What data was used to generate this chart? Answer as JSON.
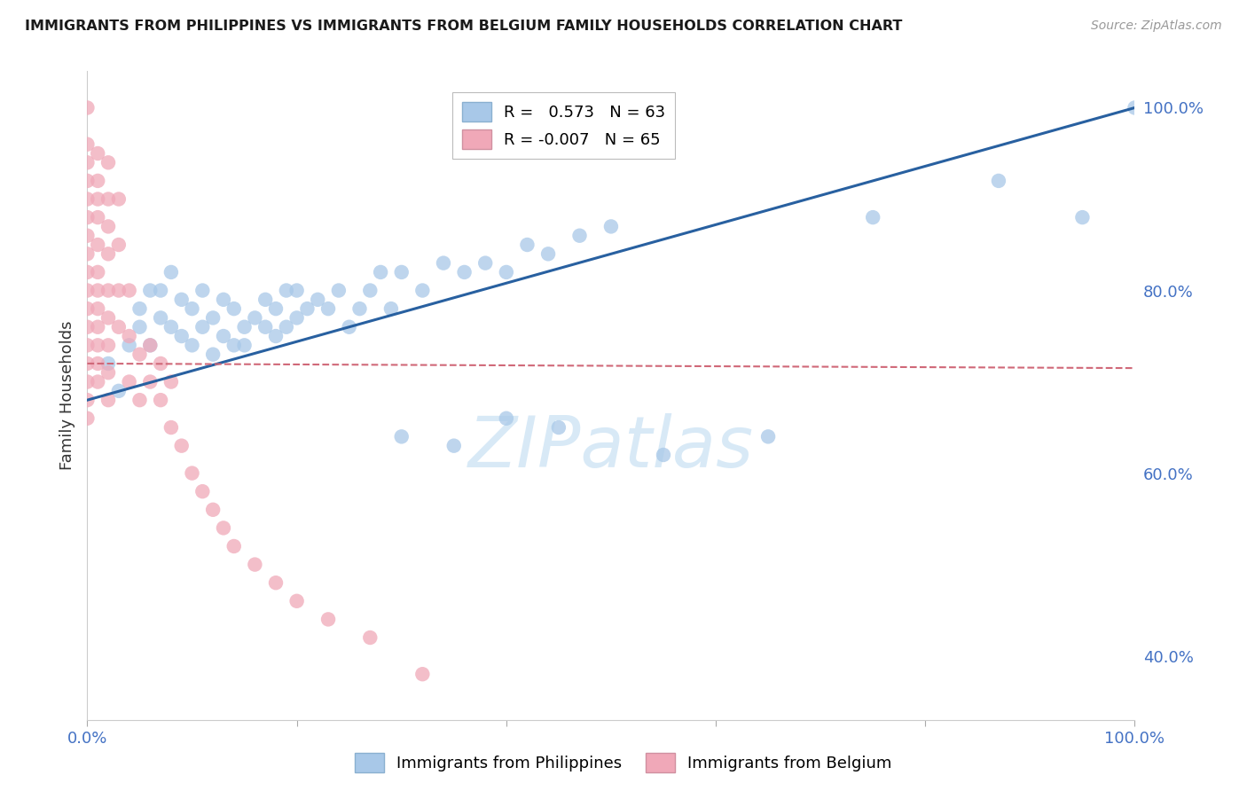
{
  "title": "IMMIGRANTS FROM PHILIPPINES VS IMMIGRANTS FROM BELGIUM FAMILY HOUSEHOLDS CORRELATION CHART",
  "source": "Source: ZipAtlas.com",
  "ylabel": "Family Households",
  "right_ytick_labels": [
    "100.0%",
    "80.0%",
    "60.0%",
    "40.0%"
  ],
  "right_ytick_values": [
    1.0,
    0.8,
    0.6,
    0.4
  ],
  "blue_color": "#a8c8e8",
  "pink_color": "#f0a8b8",
  "blue_line_color": "#2860a0",
  "pink_line_color": "#d06878",
  "watermark": "ZIPatlas",
  "blue_scatter_x": [
    0.02,
    0.03,
    0.04,
    0.05,
    0.05,
    0.06,
    0.06,
    0.07,
    0.07,
    0.08,
    0.08,
    0.09,
    0.09,
    0.1,
    0.1,
    0.11,
    0.11,
    0.12,
    0.12,
    0.13,
    0.13,
    0.14,
    0.14,
    0.15,
    0.15,
    0.16,
    0.17,
    0.17,
    0.18,
    0.18,
    0.19,
    0.19,
    0.2,
    0.2,
    0.21,
    0.22,
    0.23,
    0.24,
    0.25,
    0.26,
    0.27,
    0.28,
    0.29,
    0.3,
    0.32,
    0.34,
    0.36,
    0.38,
    0.4,
    0.42,
    0.44,
    0.47,
    0.5,
    0.3,
    0.35,
    0.4,
    0.45,
    0.55,
    0.65,
    0.75,
    0.87,
    0.95,
    1.0
  ],
  "blue_scatter_y": [
    0.72,
    0.69,
    0.74,
    0.76,
    0.78,
    0.8,
    0.74,
    0.77,
    0.8,
    0.76,
    0.82,
    0.75,
    0.79,
    0.74,
    0.78,
    0.76,
    0.8,
    0.73,
    0.77,
    0.75,
    0.79,
    0.74,
    0.78,
    0.74,
    0.76,
    0.77,
    0.76,
    0.79,
    0.75,
    0.78,
    0.76,
    0.8,
    0.77,
    0.8,
    0.78,
    0.79,
    0.78,
    0.8,
    0.76,
    0.78,
    0.8,
    0.82,
    0.78,
    0.82,
    0.8,
    0.83,
    0.82,
    0.83,
    0.82,
    0.85,
    0.84,
    0.86,
    0.87,
    0.64,
    0.63,
    0.66,
    0.65,
    0.62,
    0.64,
    0.88,
    0.92,
    0.88,
    1.0
  ],
  "pink_scatter_x": [
    0.0,
    0.0,
    0.0,
    0.0,
    0.0,
    0.0,
    0.0,
    0.0,
    0.0,
    0.0,
    0.0,
    0.0,
    0.0,
    0.0,
    0.0,
    0.0,
    0.0,
    0.01,
    0.01,
    0.01,
    0.01,
    0.01,
    0.01,
    0.01,
    0.01,
    0.01,
    0.01,
    0.01,
    0.01,
    0.02,
    0.02,
    0.02,
    0.02,
    0.02,
    0.02,
    0.02,
    0.02,
    0.02,
    0.03,
    0.03,
    0.03,
    0.03,
    0.04,
    0.04,
    0.04,
    0.05,
    0.05,
    0.06,
    0.06,
    0.07,
    0.07,
    0.08,
    0.08,
    0.09,
    0.1,
    0.11,
    0.12,
    0.13,
    0.14,
    0.16,
    0.18,
    0.2,
    0.23,
    0.27,
    0.32
  ],
  "pink_scatter_y": [
    1.0,
    0.96,
    0.94,
    0.92,
    0.9,
    0.88,
    0.86,
    0.84,
    0.82,
    0.8,
    0.78,
    0.76,
    0.74,
    0.72,
    0.7,
    0.68,
    0.66,
    0.95,
    0.92,
    0.9,
    0.88,
    0.85,
    0.82,
    0.8,
    0.78,
    0.76,
    0.74,
    0.72,
    0.7,
    0.94,
    0.9,
    0.87,
    0.84,
    0.8,
    0.77,
    0.74,
    0.71,
    0.68,
    0.9,
    0.85,
    0.8,
    0.76,
    0.8,
    0.75,
    0.7,
    0.73,
    0.68,
    0.74,
    0.7,
    0.72,
    0.68,
    0.65,
    0.7,
    0.63,
    0.6,
    0.58,
    0.56,
    0.54,
    0.52,
    0.5,
    0.48,
    0.46,
    0.44,
    0.42,
    0.38
  ],
  "blue_line_x": [
    0.0,
    1.0
  ],
  "blue_line_y": [
    0.68,
    1.0
  ],
  "pink_line_x": [
    0.0,
    1.0
  ],
  "pink_line_y": [
    0.72,
    0.715
  ],
  "xlim": [
    0.0,
    1.0
  ],
  "ylim": [
    0.33,
    1.04
  ],
  "background_color": "#ffffff",
  "grid_color": "#d0d0d0",
  "title_fontsize": 12,
  "source_text": "Source: ZipAtlas.com"
}
